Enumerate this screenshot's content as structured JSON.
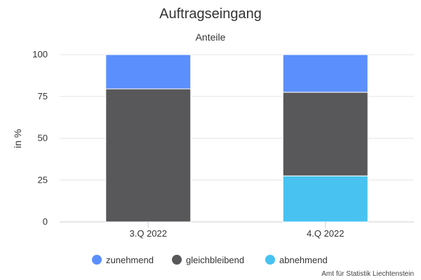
{
  "chart_data": {
    "type": "bar",
    "stacked": true,
    "title": "Auftragseingang",
    "subtitle": "Anteile",
    "ylabel": "in %",
    "ylim": [
      0,
      100
    ],
    "yticks": [
      0,
      25,
      50,
      75,
      100
    ],
    "grid": true,
    "categories": [
      "3.Q 2022",
      "4.Q 2022"
    ],
    "series": [
      {
        "name": "abnehmend",
        "color": "#47c2f1",
        "values": [
          0,
          27.5
        ]
      },
      {
        "name": "gleichbleibend",
        "color": "#58585a",
        "values": [
          79.5,
          50
        ]
      },
      {
        "name": "zunehmend",
        "color": "#5b8ffd",
        "values": [
          20.5,
          22.5
        ]
      }
    ],
    "legend": {
      "position": "bottom",
      "order": [
        "zunehmend",
        "gleichbleibend",
        "abnehmend"
      ]
    }
  },
  "credit": "Amt für Statistik Liechtenstein"
}
